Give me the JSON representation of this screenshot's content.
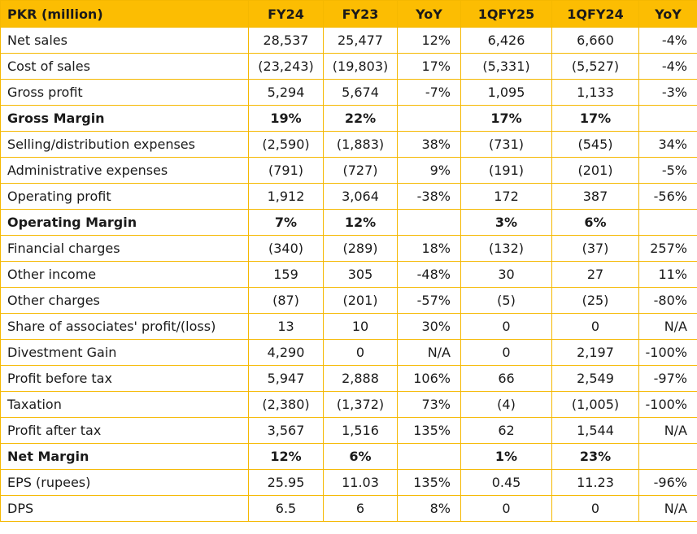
{
  "table": {
    "headers": [
      "PKR (million)",
      "FY24",
      "FY23",
      "YoY",
      "1QFY25",
      "1QFY24",
      "YoY"
    ],
    "rows": [
      {
        "cells": [
          "Net sales",
          "28,537",
          "25,477",
          "12%",
          "6,426",
          "6,660",
          "-4%"
        ],
        "bold": false
      },
      {
        "cells": [
          "Cost of sales",
          "(23,243)",
          "(19,803)",
          "17%",
          "(5,331)",
          "(5,527)",
          "-4%"
        ],
        "bold": false
      },
      {
        "cells": [
          "Gross profit",
          "5,294",
          "5,674",
          "-7%",
          "1,095",
          "1,133",
          "-3%"
        ],
        "bold": false
      },
      {
        "cells": [
          "Gross Margin",
          "19%",
          "22%",
          "",
          "17%",
          "17%",
          ""
        ],
        "bold": true
      },
      {
        "cells": [
          "Selling/distribution expenses",
          "(2,590)",
          "(1,883)",
          "38%",
          "(731)",
          "(545)",
          "34%"
        ],
        "bold": false
      },
      {
        "cells": [
          "Administrative expenses",
          "(791)",
          "(727)",
          "9%",
          "(191)",
          "(201)",
          "-5%"
        ],
        "bold": false
      },
      {
        "cells": [
          "Operating profit",
          "1,912",
          "3,064",
          "-38%",
          "172",
          "387",
          "-56%"
        ],
        "bold": false
      },
      {
        "cells": [
          "Operating Margin",
          "7%",
          "12%",
          "",
          "3%",
          "6%",
          ""
        ],
        "bold": true
      },
      {
        "cells": [
          "Financial charges",
          "(340)",
          "(289)",
          "18%",
          "(132)",
          "(37)",
          "257%"
        ],
        "bold": false
      },
      {
        "cells": [
          "Other income",
          "159",
          "305",
          "-48%",
          "30",
          "27",
          "11%"
        ],
        "bold": false
      },
      {
        "cells": [
          "Other charges",
          "(87)",
          "(201)",
          "-57%",
          "(5)",
          "(25)",
          "-80%"
        ],
        "bold": false
      },
      {
        "cells": [
          "Share of associates' profit/(loss)",
          "13",
          "10",
          "30%",
          "0",
          "0",
          "N/A"
        ],
        "bold": false
      },
      {
        "cells": [
          "Divestment Gain",
          "4,290",
          "0",
          "N/A",
          "0",
          "2,197",
          "-100%"
        ],
        "bold": false
      },
      {
        "cells": [
          "Profit before tax",
          "5,947",
          "2,888",
          "106%",
          "66",
          "2,549",
          "-97%"
        ],
        "bold": false
      },
      {
        "cells": [
          "Taxation",
          "(2,380)",
          "(1,372)",
          "73%",
          "(4)",
          "(1,005)",
          "-100%"
        ],
        "bold": false
      },
      {
        "cells": [
          "Profit after tax",
          "3,567",
          "1,516",
          "135%",
          "62",
          "1,544",
          "N/A"
        ],
        "bold": false
      },
      {
        "cells": [
          "Net Margin",
          "12%",
          "6%",
          "",
          "1%",
          "23%",
          ""
        ],
        "bold": true
      },
      {
        "cells": [
          "EPS (rupees)",
          "25.95",
          "11.03",
          "135%",
          "0.45",
          "11.23",
          "-96%"
        ],
        "bold": false
      },
      {
        "cells": [
          "DPS",
          "6.5",
          "6",
          "8%",
          "0",
          "0",
          "N/A"
        ],
        "bold": false
      }
    ]
  },
  "colors": {
    "header_bg": "#fcbd02",
    "grid_line": "#f5b800",
    "text": "#1a1a1a"
  }
}
